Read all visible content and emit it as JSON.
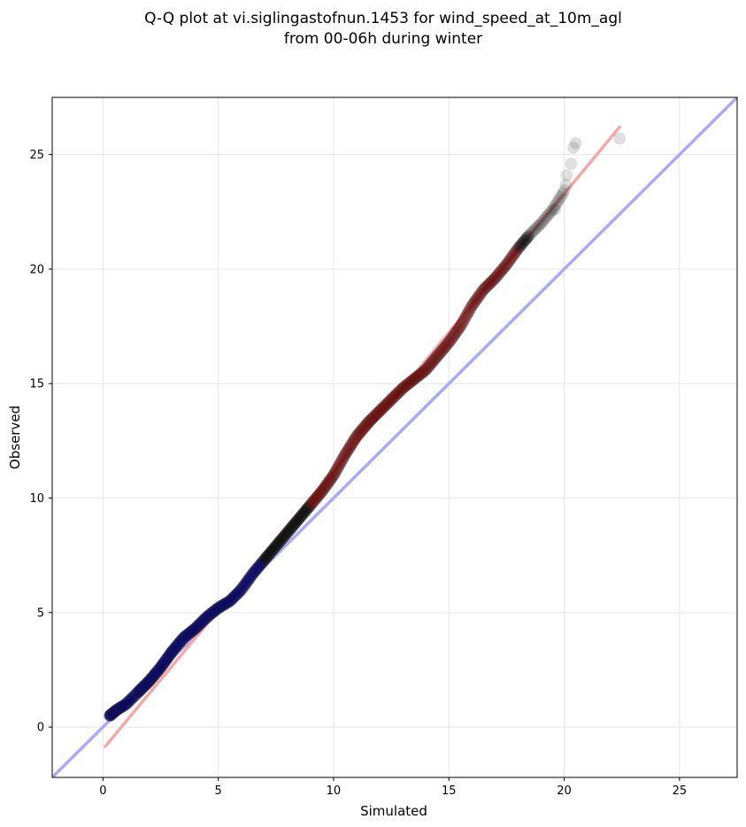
{
  "chart_data": {
    "type": "scatter",
    "title_line1": "Q-Q plot at vi.siglingastofnun.1453 for wind_speed_at_10m_agl",
    "title_line2": "from 00-06h during winter",
    "xlabel": "Simulated",
    "ylabel": "Observed",
    "xlim": [
      -2.2,
      27.5
    ],
    "ylim": [
      -2.2,
      27.5
    ],
    "xticks": [
      0,
      5,
      10,
      15,
      20,
      25
    ],
    "yticks": [
      0,
      5,
      10,
      15,
      20,
      25
    ],
    "grid": true,
    "colors": {
      "points": "#000000",
      "points_low": "#000066",
      "points_high": "#660000",
      "identity_line": "#aaaaf5",
      "fit_line": "#f5a8a8",
      "grid": "#e6e6e6"
    },
    "identity_line": {
      "x": [
        -2.2,
        27.5
      ],
      "y": [
        -2.2,
        27.5
      ]
    },
    "fit_line": {
      "x": [
        0.1,
        22.4
      ],
      "y": [
        -0.85,
        26.2
      ]
    },
    "quantile_anchors": {
      "x": [
        0.3,
        0.6,
        1.0,
        1.5,
        2.0,
        2.5,
        3.0,
        3.5,
        4.0,
        4.5,
        5.0,
        5.5,
        6.0,
        6.5,
        7.0,
        7.5,
        8.0,
        8.5,
        9.0,
        9.5,
        10.0,
        10.5,
        11.0,
        11.5,
        12.0,
        12.5,
        13.0,
        13.5,
        14.0,
        14.5,
        15.0,
        15.5,
        16.0,
        16.5,
        17.0,
        17.5,
        18.0,
        18.5,
        19.0,
        19.5,
        20.0,
        20.3,
        20.5
      ],
      "y": [
        0.5,
        0.75,
        1.0,
        1.5,
        2.0,
        2.6,
        3.3,
        3.9,
        4.3,
        4.8,
        5.2,
        5.5,
        6.0,
        6.7,
        7.3,
        7.9,
        8.5,
        9.1,
        9.7,
        10.3,
        11.0,
        11.9,
        12.7,
        13.3,
        13.8,
        14.3,
        14.8,
        15.2,
        15.6,
        16.2,
        16.8,
        17.5,
        18.4,
        19.1,
        19.6,
        20.2,
        20.9,
        21.5,
        22.0,
        22.6,
        23.4,
        24.6,
        25.5
      ]
    },
    "outliers": [
      {
        "x": 19.6,
        "y": 22.6
      },
      {
        "x": 20.1,
        "y": 24.1
      },
      {
        "x": 20.3,
        "y": 24.6
      },
      {
        "x": 20.4,
        "y": 25.3
      },
      {
        "x": 20.5,
        "y": 25.5
      },
      {
        "x": 22.4,
        "y": 25.7
      }
    ]
  }
}
